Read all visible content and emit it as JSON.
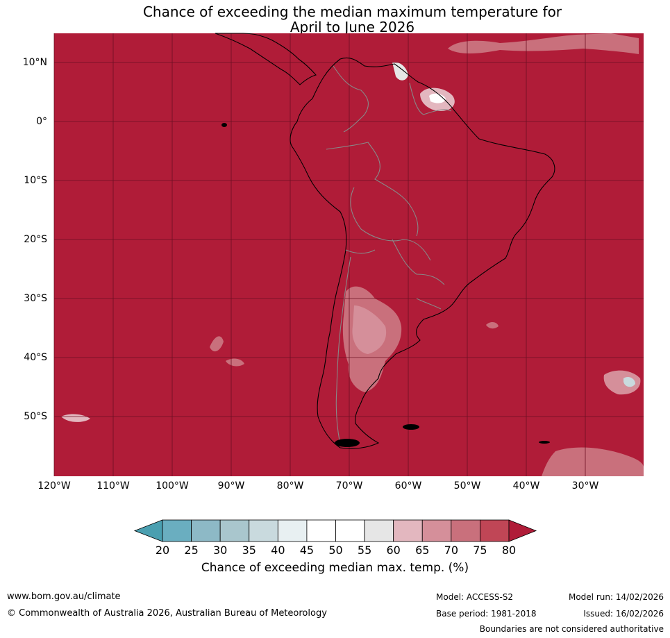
{
  "title": {
    "line1": "Chance of exceeding the median maximum temperature for",
    "line2": "April to June 2026"
  },
  "map": {
    "lat_labels": [
      "10°N",
      "0°",
      "10°S",
      "20°S",
      "30°S",
      "40°S",
      "50°S"
    ],
    "lon_labels": [
      "120°W",
      "110°W",
      "100°W",
      "90°W",
      "80°W",
      "70°W",
      "60°W",
      "50°W",
      "40°W",
      "30°W"
    ],
    "lat_values": [
      10,
      0,
      -10,
      -20,
      -30,
      -40,
      -50
    ],
    "lon_values": [
      -120,
      -110,
      -100,
      -90,
      -80,
      -70,
      -60,
      -50,
      -40,
      -30
    ],
    "lat_range": [
      -60,
      15
    ],
    "lon_range": [
      -120,
      -20
    ],
    "background_color": "#b01c38",
    "grid_color": "#6b0f22",
    "coast_color": "#000000",
    "border_color": "#888888"
  },
  "colorbar": {
    "ticks": [
      "20",
      "25",
      "30",
      "35",
      "40",
      "45",
      "50",
      "55",
      "60",
      "65",
      "70",
      "75",
      "80"
    ],
    "colors": [
      "#4a9fb0",
      "#6aaec0",
      "#8db9c6",
      "#a9c6cd",
      "#c9dade",
      "#e8f0f2",
      "#ffffff",
      "#ffffff",
      "#e6e6e6",
      "#e3b7bf",
      "#d58f9a",
      "#c9707c",
      "#c04656",
      "#b01c38"
    ],
    "label": "Chance of exceeding median max. temp. (%)"
  },
  "footer": {
    "website": "www.bom.gov.au/climate",
    "copyright": "© Commonwealth of Australia 2026, Australian Bureau of Meteorology",
    "model": "Model: ACCESS-S2",
    "model_run": "Model run: 14/02/2026",
    "base_period": "Base period: 1981-2018",
    "issued": "Issued: 16/02/2026",
    "disclaimer": "Boundaries are not considered authoritative"
  }
}
